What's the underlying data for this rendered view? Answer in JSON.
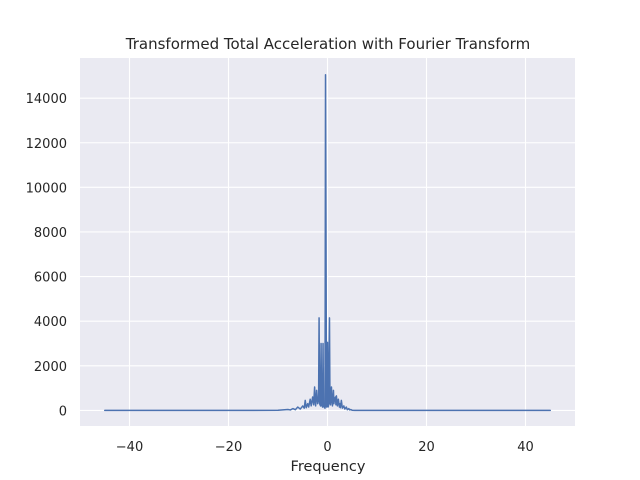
{
  "chart_data": {
    "type": "line",
    "title": "Transformed Total Acceleration with Fourier Transform",
    "xlabel": "Frequency",
    "ylabel": "",
    "xlim": [
      -50,
      50
    ],
    "ylim": [
      -700,
      15800
    ],
    "x_ticks": [
      -40,
      -20,
      0,
      20,
      40
    ],
    "x_tick_labels": [
      "−40",
      "−20",
      "0",
      "20",
      "40"
    ],
    "y_ticks": [
      0,
      2000,
      4000,
      6000,
      8000,
      10000,
      12000,
      14000
    ],
    "y_tick_labels": [
      "0",
      "2000",
      "4000",
      "6000",
      "8000",
      "10000",
      "12000",
      "14000"
    ],
    "grid": true,
    "legend": "none",
    "colors": {
      "background": "#eaeaf2",
      "grid": "#ffffff",
      "series": "#4c72b0"
    },
    "series": [
      {
        "x": [
          -45,
          -20,
          -10,
          -8,
          -7.5,
          -7,
          -6.5,
          -6,
          -5.5,
          -5,
          -4.7,
          -4.5,
          -4.3,
          -4,
          -3.8,
          -3.5,
          -3.3,
          -3,
          -2.8,
          -2.6,
          -2.5,
          -2.4,
          -2.2,
          -2,
          -1.8,
          -1.7,
          -1.6,
          -1.4,
          -1.3,
          -1.2,
          -1.0,
          -0.9,
          -0.8,
          -0.6,
          -0.5,
          -0.4,
          -0.2,
          -0.1,
          0,
          0.1,
          0.2,
          0.4,
          0.5,
          0.6,
          0.8,
          0.9,
          1.0,
          1.2,
          1.3,
          1.4,
          1.6,
          1.7,
          1.8,
          2.0,
          2.2,
          2.4,
          2.5,
          2.6,
          2.8,
          3.0,
          3.3,
          3.5,
          3.8,
          4.0,
          4.3,
          4.5,
          4.7,
          5.0,
          5.5,
          6.0,
          6.5,
          7.0,
          7.5,
          8.0,
          10,
          20,
          45
        ],
        "y": [
          0,
          0,
          5,
          40,
          20,
          80,
          30,
          150,
          60,
          200,
          100,
          450,
          120,
          300,
          150,
          500,
          200,
          600,
          250,
          1050,
          400,
          200,
          900,
          300,
          500,
          4150,
          300,
          200,
          3000,
          250,
          150,
          3000,
          200,
          120,
          100,
          15050,
          150,
          250,
          3050,
          150,
          200,
          4150,
          300,
          250,
          1050,
          400,
          200,
          900,
          300,
          500,
          600,
          250,
          650,
          200,
          500,
          150,
          300,
          120,
          450,
          100,
          200,
          60,
          150,
          30,
          80,
          20,
          40,
          5,
          0,
          0,
          0,
          0,
          0,
          0,
          0,
          0,
          0
        ]
      }
    ]
  }
}
